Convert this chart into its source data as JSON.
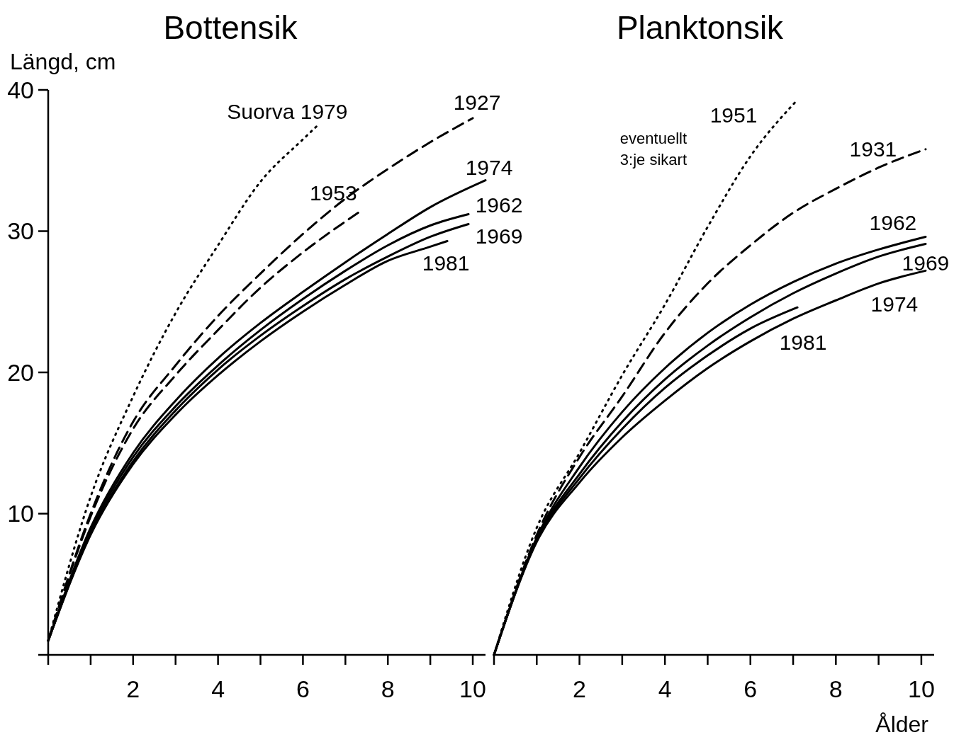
{
  "chart_data": [
    {
      "type": "line",
      "title": "Bottensik",
      "ylabel": "Längd, cm",
      "xlim": [
        0,
        10.3
      ],
      "ylim": [
        0,
        40
      ],
      "xticks": [
        {
          "value": 0,
          "label": null
        },
        {
          "value": 1,
          "label": null
        },
        2,
        {
          "value": 3,
          "label": null
        },
        4,
        {
          "value": 5,
          "label": null
        },
        6,
        {
          "value": 7,
          "label": null
        },
        8,
        {
          "value": 9,
          "label": null
        },
        10
      ],
      "yticks": [
        {
          "value": 0,
          "label": null
        },
        10,
        20,
        30,
        40
      ],
      "grid": false,
      "series": [
        {
          "name": "Suorva 1979",
          "color": "#000000",
          "line_style": "dotted",
          "x": [
            0,
            1,
            2,
            3,
            4,
            5,
            6,
            6.35
          ],
          "values": [
            1,
            11.2,
            18.3,
            24.2,
            29,
            33.5,
            36.5,
            37.5
          ]
        },
        {
          "name": "1927",
          "color": "#000000",
          "line_style": "dashed",
          "x": [
            0,
            1,
            2,
            3,
            4,
            5,
            6,
            7,
            8,
            9,
            10
          ],
          "values": [
            1,
            10,
            16.5,
            20.5,
            24,
            27,
            29.8,
            32.3,
            34.4,
            36.3,
            38
          ]
        },
        {
          "name": "1953",
          "color": "#000000",
          "line_style": "dashed",
          "x": [
            0,
            1,
            2,
            3,
            4,
            5,
            6,
            7.3
          ],
          "values": [
            1,
            9.8,
            16,
            19.8,
            23,
            26,
            28.5,
            31.3
          ]
        },
        {
          "name": "1974",
          "color": "#000000",
          "line_style": "solid",
          "x": [
            0,
            1,
            2,
            3,
            4,
            5,
            6,
            7,
            8,
            9,
            10.3
          ],
          "values": [
            1,
            9,
            14.3,
            18,
            21,
            23.5,
            25.7,
            27.8,
            29.8,
            31.7,
            33.6
          ]
        },
        {
          "name": "1962",
          "color": "#000000",
          "line_style": "solid",
          "x": [
            0,
            1,
            2,
            3,
            4,
            5,
            6,
            7,
            8,
            9,
            9.9
          ],
          "values": [
            1,
            8.8,
            14,
            17.6,
            20.5,
            23,
            25.2,
            27.2,
            29,
            30.4,
            31.2
          ]
        },
        {
          "name": "1969",
          "color": "#000000",
          "line_style": "solid",
          "x": [
            0,
            1,
            2,
            3,
            4,
            5,
            6,
            7,
            8,
            9,
            9.9
          ],
          "values": [
            1,
            8.6,
            13.7,
            17.3,
            20.2,
            22.6,
            24.7,
            26.6,
            28.2,
            29.6,
            30.5
          ]
        },
        {
          "name": "1981",
          "color": "#000000",
          "line_style": "solid",
          "x": [
            0,
            1,
            2,
            3,
            4,
            5,
            6,
            7,
            8,
            9,
            9.4
          ],
          "values": [
            1,
            8.5,
            13.5,
            17,
            19.8,
            22.2,
            24.3,
            26.2,
            27.9,
            28.9,
            29.3
          ]
        }
      ]
    },
    {
      "type": "line",
      "title": "Planktonsik",
      "xlabel": "Ålder",
      "tick_labels": "x",
      "annotations": [
        "eventuellt\n3:je sikart"
      ],
      "xlim": [
        0,
        10.3
      ],
      "ylim": [
        0,
        40
      ],
      "xticks": [
        {
          "value": 0,
          "label": null
        },
        {
          "value": 1,
          "label": null
        },
        2,
        {
          "value": 3,
          "label": null
        },
        4,
        {
          "value": 5,
          "label": null
        },
        6,
        {
          "value": 7,
          "label": null
        },
        8,
        {
          "value": 9,
          "label": null
        },
        10
      ],
      "grid": false,
      "series": [
        {
          "name": "1951",
          "color": "#000000",
          "line_style": "dotted",
          "x": [
            0,
            1,
            2,
            3,
            4,
            5,
            6,
            7.1
          ],
          "values": [
            0,
            9,
            14.3,
            19.8,
            24.8,
            30.3,
            35.3,
            39.3
          ]
        },
        {
          "name": "1931",
          "color": "#000000",
          "line_style": "dashed",
          "x": [
            0,
            1,
            2,
            3,
            4,
            5,
            6,
            7,
            8,
            9,
            10.1
          ],
          "values": [
            0,
            8.5,
            14,
            18.3,
            22.8,
            26.3,
            29,
            31.3,
            33,
            34.5,
            35.8
          ]
        },
        {
          "name": "1962",
          "color": "#000000",
          "line_style": "solid",
          "x": [
            0,
            1,
            2,
            3,
            4,
            5,
            6,
            7,
            8,
            9,
            10.1
          ],
          "values": [
            0,
            8.3,
            13.3,
            17.2,
            20.3,
            22.8,
            24.8,
            26.4,
            27.7,
            28.7,
            29.6
          ]
        },
        {
          "name": "1969",
          "color": "#000000",
          "line_style": "solid",
          "x": [
            0,
            1,
            2,
            3,
            4,
            5,
            6,
            7,
            8,
            9,
            10.1
          ],
          "values": [
            0,
            8.2,
            12.8,
            16.5,
            19.5,
            21.9,
            23.9,
            25.6,
            27,
            28.2,
            29.1
          ]
        },
        {
          "name": "1981",
          "color": "#000000",
          "line_style": "solid",
          "x": [
            0,
            1,
            2,
            3,
            4,
            5,
            6,
            7.1
          ],
          "values": [
            0,
            8.1,
            12.5,
            16,
            18.9,
            21.2,
            23.1,
            24.6
          ]
        },
        {
          "name": "1974",
          "color": "#000000",
          "line_style": "solid",
          "x": [
            0,
            1,
            2,
            3,
            4,
            5,
            6,
            7,
            8,
            9,
            10.1
          ],
          "values": [
            0,
            8,
            12.2,
            15.4,
            18,
            20.3,
            22.2,
            23.8,
            25.1,
            26.3,
            27.2
          ]
        }
      ]
    }
  ]
}
